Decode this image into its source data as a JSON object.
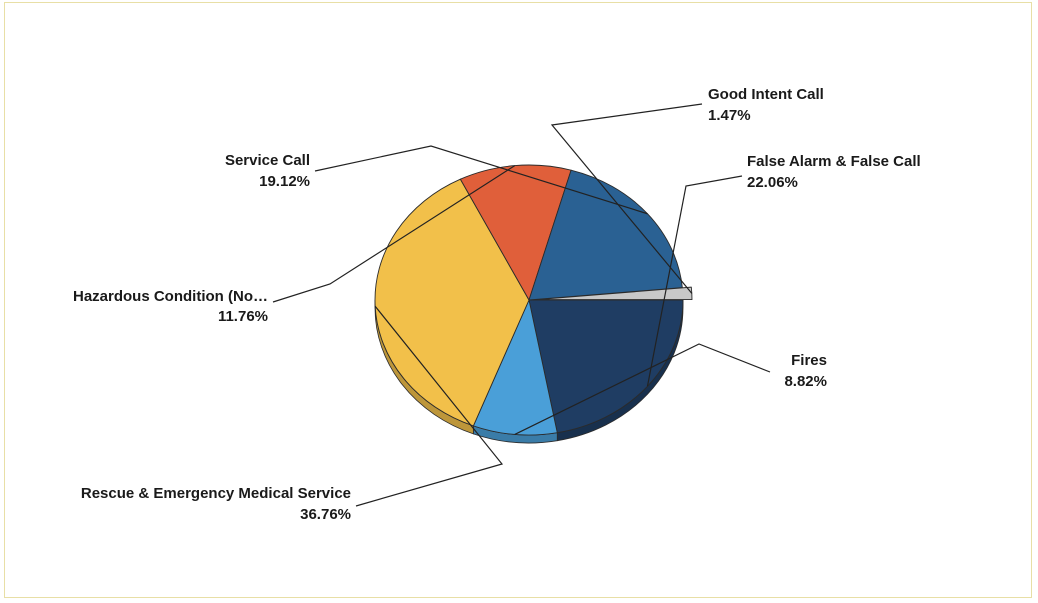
{
  "chart_data": {
    "type": "pie",
    "slices": [
      {
        "name": "False Alarm & False Call",
        "percent_label": "22.06%",
        "value": 22.06,
        "color": "#1f3d63"
      },
      {
        "name": "Fires",
        "percent_label": "8.82%",
        "value": 8.82,
        "color": "#4a9fd8"
      },
      {
        "name": "Rescue & Emergency Medical Service",
        "percent_label": "36.76%",
        "value": 36.76,
        "color": "#f2c04a"
      },
      {
        "name": "Hazardous Condition (No…",
        "percent_label": "11.76%",
        "value": 11.76,
        "color": "#e05f3a"
      },
      {
        "name": "Service Call",
        "percent_label": "19.12%",
        "value": 19.12,
        "color": "#2a6193"
      },
      {
        "name": "Good Intent Call",
        "percent_label": "1.47%",
        "value": 1.47,
        "color": "#c8c8c8"
      }
    ],
    "start": "3 o'clock",
    "direction": "clockwise",
    "style": "3d-tilted",
    "legend": "none, labels outside with leader lines"
  },
  "colors": {
    "frame_border": "#e8dfa6",
    "slice_outline": "#2b2b2b",
    "label_text": "#1a1a1a"
  }
}
